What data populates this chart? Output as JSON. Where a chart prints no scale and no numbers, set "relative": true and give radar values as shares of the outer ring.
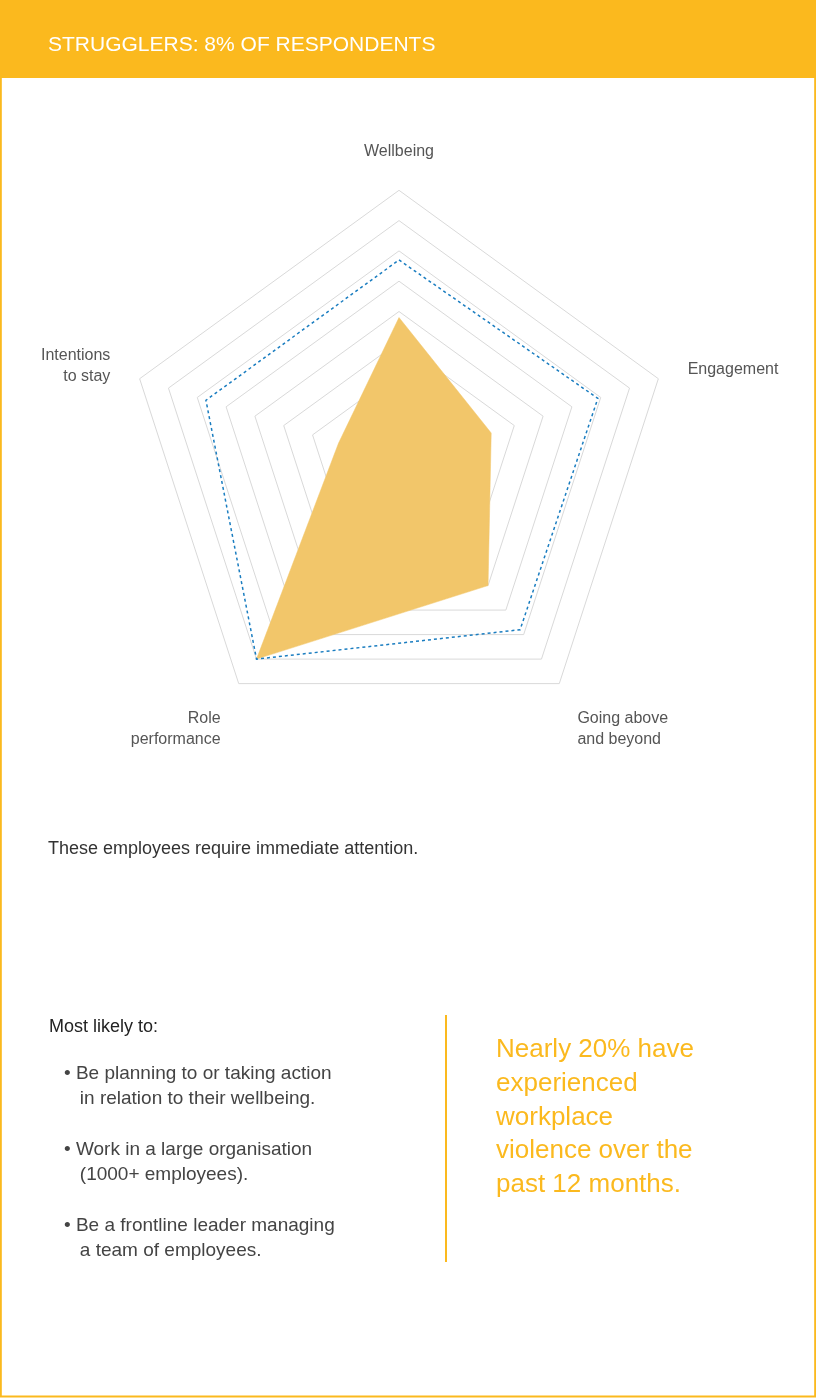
{
  "chart_data": {
    "type": "radar",
    "title": "STRUGGLERS: 8% OF RESPONDENTS",
    "categories": [
      "Wellbeing",
      "Engagement",
      "Going above and beyond",
      "Role performance",
      "Intentions to stay"
    ],
    "relative": true,
    "grid": true,
    "legend": false,
    "series": [
      {
        "type": "area",
        "color": "#f2c66a",
        "values": [
          0.48,
          0.32,
          0.5,
          0.8,
          0.21
        ]
      },
      {
        "color": "#1a7dc0",
        "line_style": "dotted",
        "values": [
          0.67,
          0.69,
          0.68,
          0.8,
          0.67
        ]
      }
    ],
    "annotations": [
      "These employees require immediate attention.",
      "Most likely to:",
      "• Be planning to or taking action in relation to their wellbeing.",
      "• Work in a large organisation (1000+ employees).",
      "• Be a frontline leader managing a team of employees.",
      "Nearly 20% have experienced workplace violence over the past 12 months."
    ]
  }
}
